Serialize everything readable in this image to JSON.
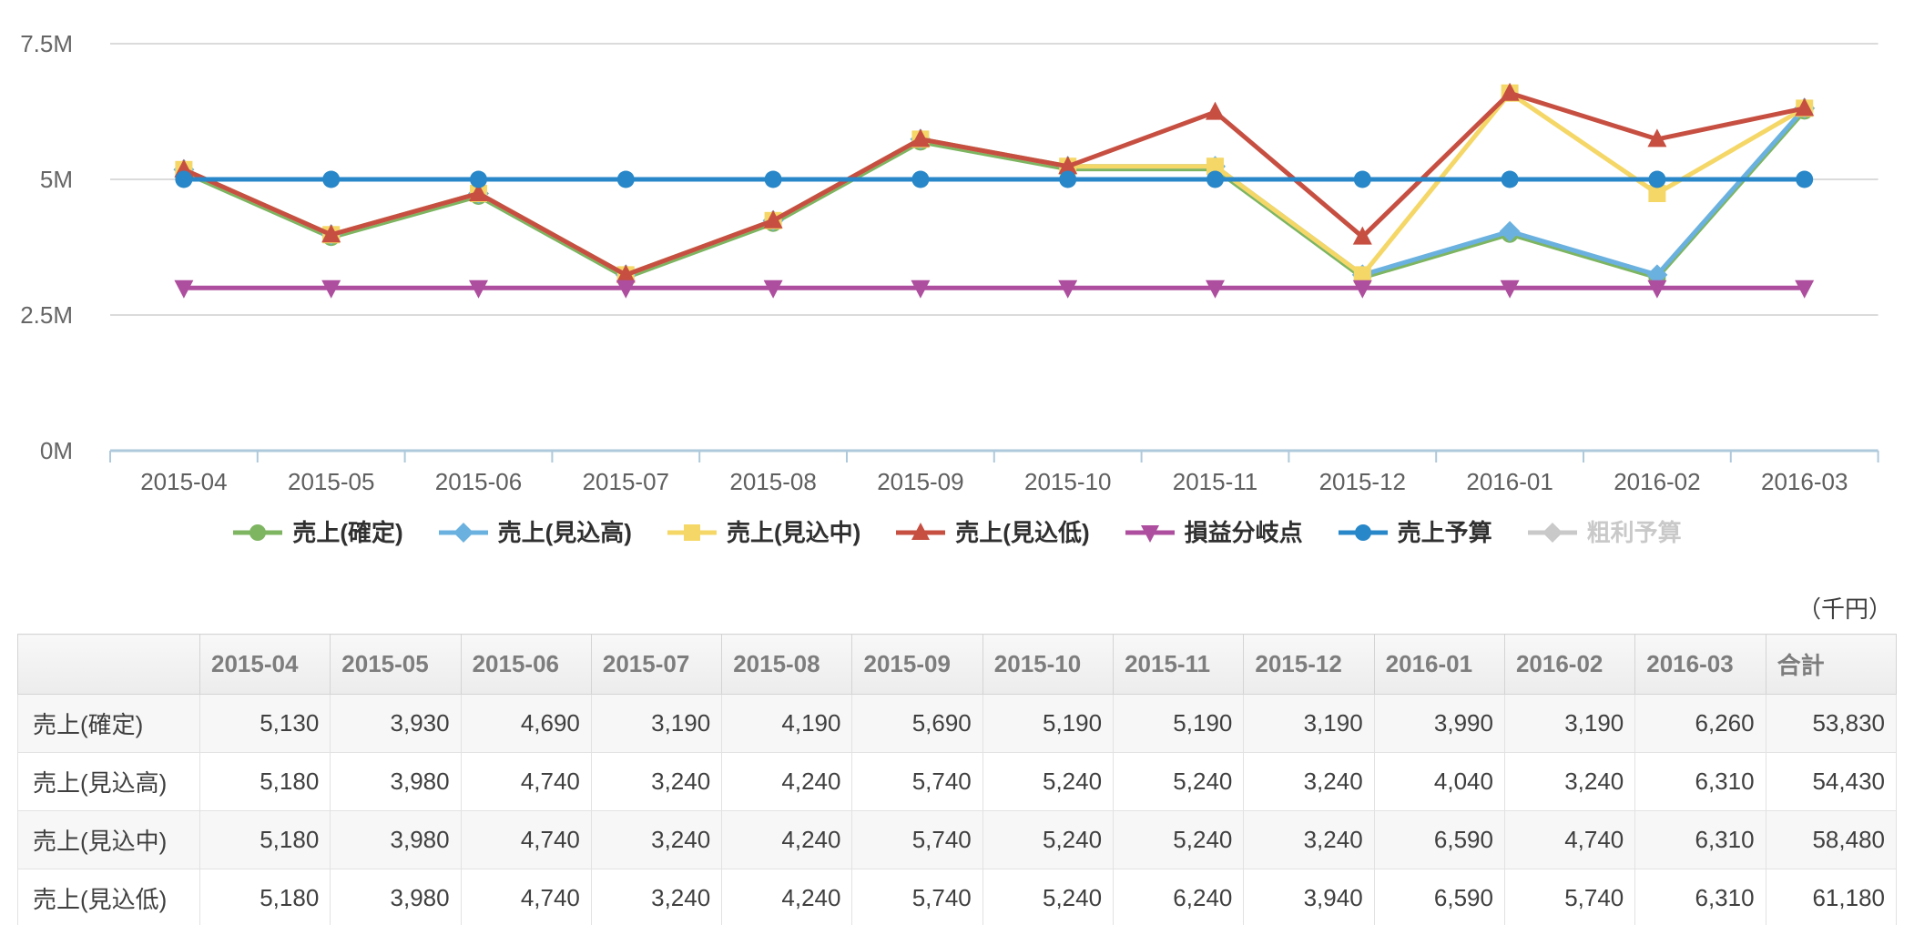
{
  "chart_data": {
    "type": "line",
    "title": "",
    "xlabel": "",
    "ylabel": "",
    "unit": "千円",
    "x": [
      "2015-04",
      "2015-05",
      "2015-06",
      "2015-07",
      "2015-08",
      "2015-09",
      "2015-10",
      "2015-11",
      "2015-12",
      "2016-01",
      "2016-02",
      "2016-03"
    ],
    "ylim": [
      0,
      7500
    ],
    "yticks": [
      {
        "value": 0,
        "label": "0M"
      },
      {
        "value": 2500,
        "label": "2.5M"
      },
      {
        "value": 5000,
        "label": "5M"
      },
      {
        "value": 7500,
        "label": "7.5M"
      }
    ],
    "grid": "horizontal",
    "legend_position": "bottom",
    "series": [
      {
        "name": "売上(確定)",
        "color": "#7DB561",
        "marker": "circle",
        "visible": true,
        "values": [
          5130,
          3930,
          4690,
          3190,
          4190,
          5690,
          5190,
          5190,
          3190,
          3990,
          3190,
          6260
        ]
      },
      {
        "name": "売上(見込高)",
        "color": "#6BB1DF",
        "marker": "diamond",
        "visible": true,
        "values": [
          5180,
          3980,
          4740,
          3240,
          4240,
          5740,
          5240,
          5240,
          3240,
          4040,
          3240,
          6310
        ]
      },
      {
        "name": "売上(見込中)",
        "color": "#F5D767",
        "marker": "square",
        "visible": true,
        "values": [
          5180,
          3980,
          4740,
          3240,
          4240,
          5740,
          5240,
          5240,
          3240,
          6590,
          4740,
          6310
        ]
      },
      {
        "name": "売上(見込低)",
        "color": "#C64F41",
        "marker": "triangle-up",
        "visible": true,
        "values": [
          5180,
          3980,
          4740,
          3240,
          4240,
          5740,
          5240,
          6240,
          3940,
          6590,
          5740,
          6310
        ]
      },
      {
        "name": "損益分岐点",
        "color": "#AE4E9E",
        "marker": "triangle-down",
        "visible": true,
        "values": [
          3000,
          3000,
          3000,
          3000,
          3000,
          3000,
          3000,
          3000,
          3000,
          3000,
          3000,
          3000
        ]
      },
      {
        "name": "売上予算",
        "color": "#2887C8",
        "marker": "circle",
        "visible": true,
        "values": [
          5000,
          5000,
          5000,
          5000,
          5000,
          5000,
          5000,
          5000,
          5000,
          5000,
          5000,
          5000
        ]
      },
      {
        "name": "粗利予算",
        "color": "#C9C9C9",
        "marker": "diamond",
        "visible": false,
        "values": []
      }
    ],
    "colors": {
      "grid": "#dbdbdb",
      "axis": "#aec9db",
      "tick_label": "#666666"
    }
  },
  "table": {
    "unit_note": "（千円）",
    "columns": [
      "",
      "2015-04",
      "2015-05",
      "2015-06",
      "2015-07",
      "2015-08",
      "2015-09",
      "2015-10",
      "2015-11",
      "2015-12",
      "2016-01",
      "2016-02",
      "2016-03",
      "合計"
    ],
    "rows": [
      {
        "label": "売上(確定)",
        "values": [
          5130,
          3930,
          4690,
          3190,
          4190,
          5690,
          5190,
          5190,
          3190,
          3990,
          3190,
          6260
        ],
        "total": 53830
      },
      {
        "label": "売上(見込高)",
        "values": [
          5180,
          3980,
          4740,
          3240,
          4240,
          5740,
          5240,
          5240,
          3240,
          4040,
          3240,
          6310
        ],
        "total": 54430
      },
      {
        "label": "売上(見込中)",
        "values": [
          5180,
          3980,
          4740,
          3240,
          4240,
          5740,
          5240,
          5240,
          3240,
          6590,
          4740,
          6310
        ],
        "total": 58480
      },
      {
        "label": "売上(見込低)",
        "values": [
          5180,
          3980,
          4740,
          3240,
          4240,
          5740,
          5240,
          6240,
          3940,
          6590,
          5740,
          6310
        ],
        "total": 61180
      }
    ]
  }
}
